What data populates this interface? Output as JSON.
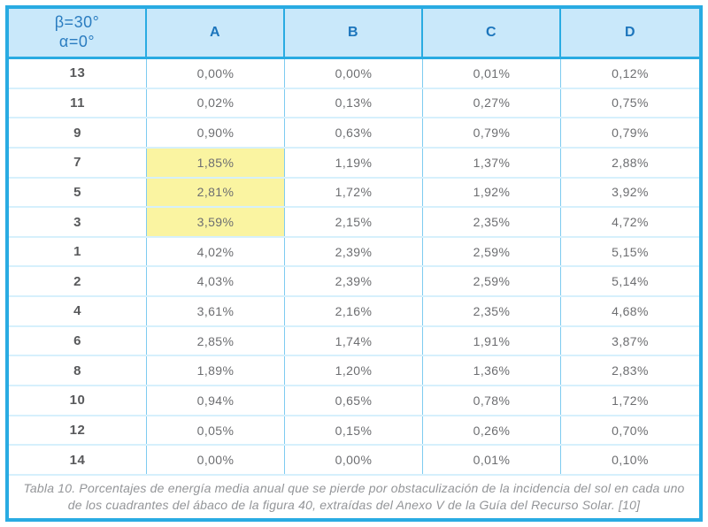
{
  "table": {
    "corner_header": {
      "line1": "β=30°",
      "line2": "α=0°"
    },
    "columns": [
      "A",
      "B",
      "C",
      "D"
    ],
    "rows": [
      {
        "label": "13",
        "values": [
          "0,00%",
          "0,00%",
          "0,01%",
          "0,12%"
        ],
        "highlight": []
      },
      {
        "label": "11",
        "values": [
          "0,02%",
          "0,13%",
          "0,27%",
          "0,75%"
        ],
        "highlight": []
      },
      {
        "label": "9",
        "values": [
          "0,90%",
          "0,63%",
          "0,79%",
          "0,79%"
        ],
        "highlight": []
      },
      {
        "label": "7",
        "values": [
          "1,85%",
          "1,19%",
          "1,37%",
          "2,88%"
        ],
        "highlight": [
          "A"
        ]
      },
      {
        "label": "5",
        "values": [
          "2,81%",
          "1,72%",
          "1,92%",
          "3,92%"
        ],
        "highlight": [
          "A"
        ]
      },
      {
        "label": "3",
        "values": [
          "3,59%",
          "2,15%",
          "2,35%",
          "4,72%"
        ],
        "highlight": [
          "A"
        ]
      },
      {
        "label": "1",
        "values": [
          "4,02%",
          "2,39%",
          "2,59%",
          "5,15%"
        ],
        "highlight": []
      },
      {
        "label": "2",
        "values": [
          "4,03%",
          "2,39%",
          "2,59%",
          "5,14%"
        ],
        "highlight": []
      },
      {
        "label": "4",
        "values": [
          "3,61%",
          "2,16%",
          "2,35%",
          "4,68%"
        ],
        "highlight": []
      },
      {
        "label": "6",
        "values": [
          "2,85%",
          "1,74%",
          "1,91%",
          "3,87%"
        ],
        "highlight": []
      },
      {
        "label": "8",
        "values": [
          "1,89%",
          "1,20%",
          "1,36%",
          "2,83%"
        ],
        "highlight": []
      },
      {
        "label": "10",
        "values": [
          "0,94%",
          "0,65%",
          "0,78%",
          "1,72%"
        ],
        "highlight": []
      },
      {
        "label": "12",
        "values": [
          "0,05%",
          "0,15%",
          "0,26%",
          "0,70%"
        ],
        "highlight": []
      },
      {
        "label": "14",
        "values": [
          "0,00%",
          "0,00%",
          "0,01%",
          "0,10%"
        ],
        "highlight": []
      }
    ]
  },
  "caption": "Tabla 10. Porcentajes de energía media anual que se pierde por obstaculización de la incidencia del sol en cada uno de los cuadrantes del ábaco de la figura 40, extraídas del Anexo V de la Guía del Recurso Solar. [10]",
  "colors": {
    "outer_border": "#29ABE2",
    "header_background": "#C9E8FA",
    "header_text": "#1C75BC",
    "row_label_text": "#58595B",
    "value_text": "#6D6E71",
    "caption_text": "#939598",
    "highlight": "#FAF4A1",
    "row_divider": "#D6F0FC",
    "column_divider": "#7ECBF0"
  }
}
